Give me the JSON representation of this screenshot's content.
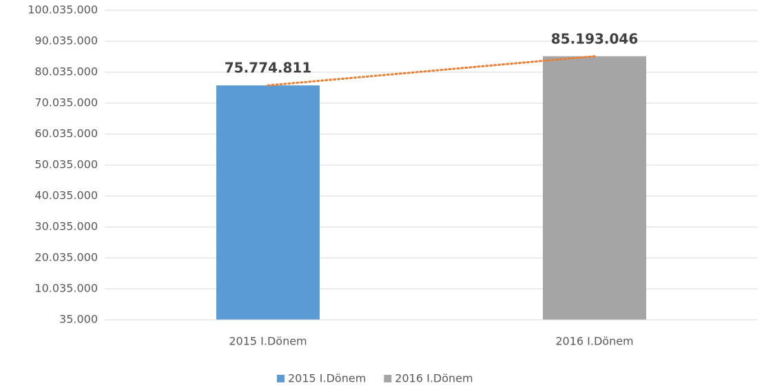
{
  "chart_data": {
    "type": "bar",
    "categories": [
      "2015 I.Dönem",
      "2016 I.Dönem"
    ],
    "values": [
      75774811,
      85193046
    ],
    "value_labels": [
      "75.774.811",
      "85.193.046"
    ],
    "colors": [
      "#5b9bd5",
      "#a5a5a5"
    ],
    "trendline": {
      "color": "#ed7d31",
      "style": "dotted"
    },
    "ylim": [
      35000,
      100035000
    ],
    "yticks": [
      {
        "value": 35000,
        "label": "35.000"
      },
      {
        "value": 10035000,
        "label": "10.035.000"
      },
      {
        "value": 20035000,
        "label": "20.035.000"
      },
      {
        "value": 30035000,
        "label": "30.035.000"
      },
      {
        "value": 40035000,
        "label": "40.035.000"
      },
      {
        "value": 50035000,
        "label": "50.035.000"
      },
      {
        "value": 60035000,
        "label": "60.035.000"
      },
      {
        "value": 70035000,
        "label": "70.035.000"
      },
      {
        "value": 80035000,
        "label": "80.035.000"
      },
      {
        "value": 90035000,
        "label": "90.035.000"
      },
      {
        "value": 100035000,
        "label": "100.035.000"
      }
    ],
    "grid": true,
    "legend": "bottom"
  }
}
